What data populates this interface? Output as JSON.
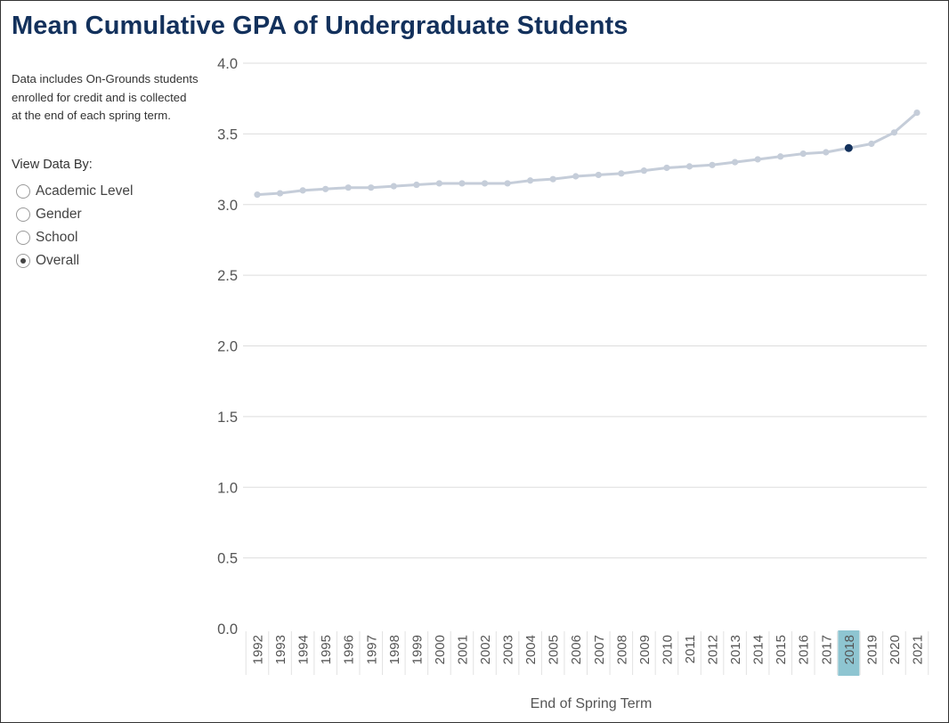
{
  "title": "Mean Cumulative GPA of Undergraduate Students",
  "description": "Data includes On-Grounds students enrolled for credit and is collected at the end of each spring term.",
  "filter": {
    "label": "View Data By:",
    "options": [
      {
        "label": "Academic Level",
        "checked": false
      },
      {
        "label": "Gender",
        "checked": false
      },
      {
        "label": "School",
        "checked": false
      },
      {
        "label": "Overall",
        "checked": true
      }
    ]
  },
  "colors": {
    "title": "#13315c",
    "line": "#c5cdd9",
    "highlight_point": "#13315c",
    "highlight_label_bg": "#8ec5d1",
    "gridline": "#dddddd",
    "axis_text": "#555555"
  },
  "chart_data": {
    "type": "line",
    "xlabel": "End of Spring Term",
    "ylabel": "",
    "ylim": [
      0,
      4
    ],
    "yticks": [
      "0.0",
      "0.5",
      "1.0",
      "1.5",
      "2.0",
      "2.5",
      "3.0",
      "3.5",
      "4.0"
    ],
    "grid": true,
    "highlight": "2018",
    "categories": [
      "1992",
      "1993",
      "1994",
      "1995",
      "1996",
      "1997",
      "1998",
      "1999",
      "2000",
      "2001",
      "2002",
      "2003",
      "2004",
      "2005",
      "2006",
      "2007",
      "2008",
      "2009",
      "2010",
      "2011",
      "2012",
      "2013",
      "2014",
      "2015",
      "2016",
      "2017",
      "2018",
      "2019",
      "2020",
      "2021"
    ],
    "series": [
      {
        "values": [
          3.07,
          3.08,
          3.1,
          3.11,
          3.12,
          3.12,
          3.13,
          3.14,
          3.15,
          3.15,
          3.15,
          3.15,
          3.17,
          3.18,
          3.2,
          3.21,
          3.22,
          3.24,
          3.26,
          3.27,
          3.28,
          3.3,
          3.32,
          3.34,
          3.36,
          3.37,
          3.4,
          3.43,
          3.51,
          3.65
        ]
      }
    ]
  }
}
